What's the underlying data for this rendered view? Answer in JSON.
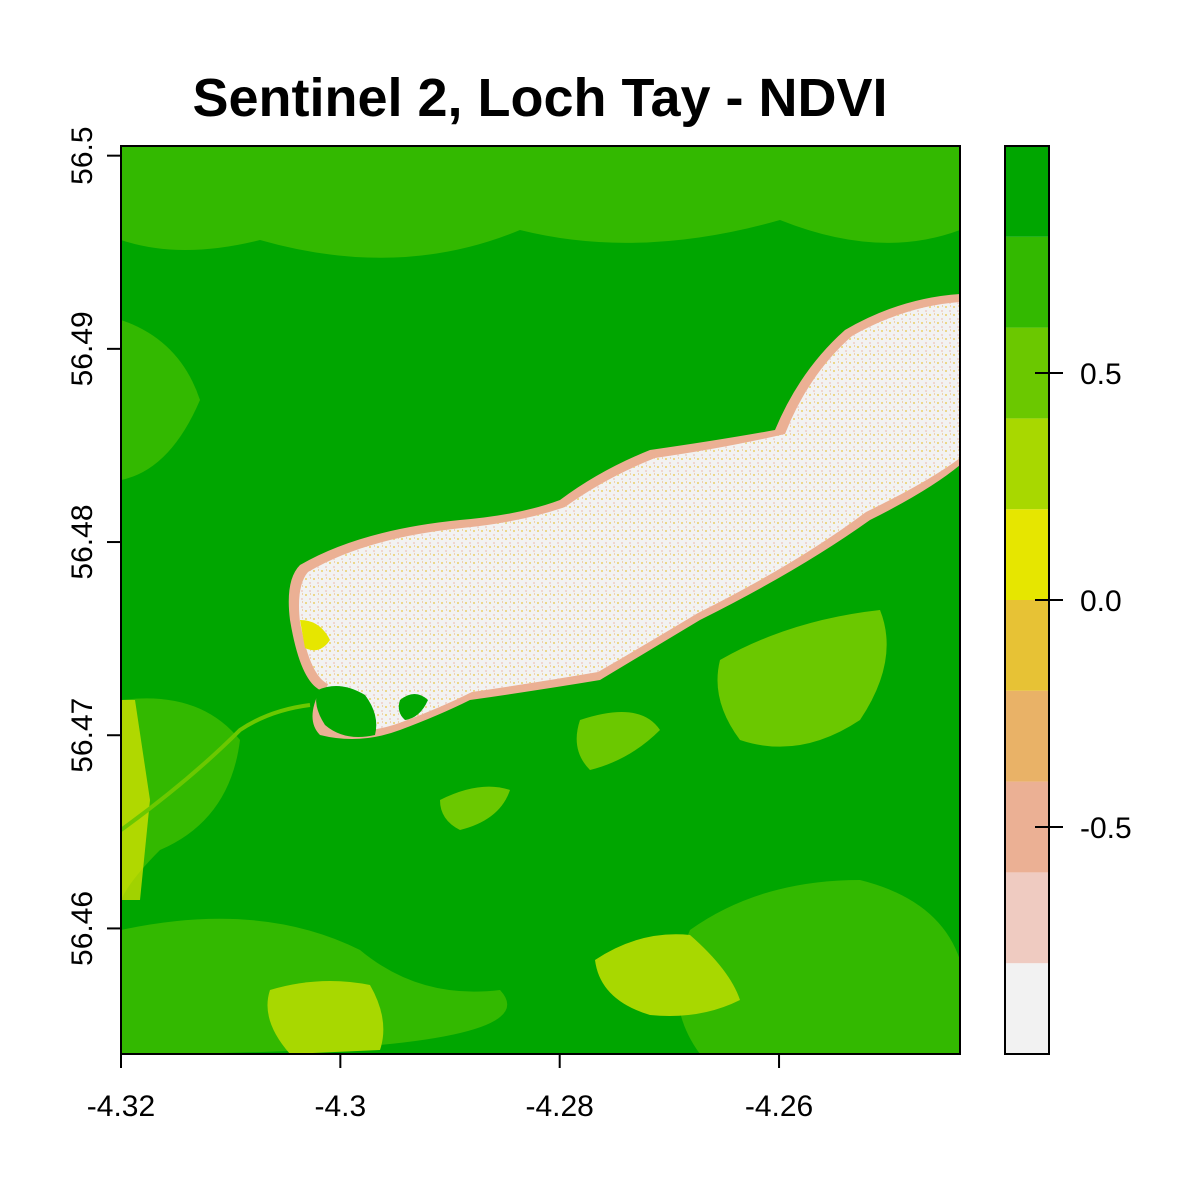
{
  "chart_data": {
    "type": "heatmap",
    "title": "Sentinel 2, Loch Tay - NDVI",
    "xlabel": "",
    "ylabel": "",
    "xlim": [
      -4.32,
      -4.2435
    ],
    "ylim": [
      56.4535,
      56.5005
    ],
    "x_ticks": [
      -4.32,
      -4.3,
      -4.28,
      -4.26
    ],
    "x_tick_labels": [
      "-4.32",
      "-4.3",
      "-4.28",
      "-4.26"
    ],
    "y_ticks": [
      56.46,
      56.47,
      56.48,
      56.49,
      56.5
    ],
    "y_tick_labels": [
      "56.46",
      "56.47",
      "56.48",
      "56.49",
      "56.5"
    ],
    "grid": false,
    "legend": {
      "position": "right",
      "range": [
        -1.0,
        1.0
      ],
      "ticks": [
        -0.5,
        0.0,
        0.5
      ],
      "tick_labels": [
        "-0.5",
        "0.0",
        "0.5"
      ],
      "color_bins": [
        {
          "from": -1.0,
          "to": -0.8,
          "color": "#F2F2F2"
        },
        {
          "from": -0.8,
          "to": -0.6,
          "color": "#EFCBC1"
        },
        {
          "from": -0.6,
          "to": -0.4,
          "color": "#EBB094"
        },
        {
          "from": -0.4,
          "to": -0.2,
          "color": "#E9B267"
        },
        {
          "from": -0.2,
          "to": 0.0,
          "color": "#E7C235"
        },
        {
          "from": 0.0,
          "to": 0.2,
          "color": "#E6E600"
        },
        {
          "from": 0.2,
          "to": 0.4,
          "color": "#A8D800"
        },
        {
          "from": 0.4,
          "to": 0.6,
          "color": "#6BC800"
        },
        {
          "from": 0.6,
          "to": 0.8,
          "color": "#33B900"
        },
        {
          "from": 0.8,
          "to": 1.0,
          "color": "#00A600"
        }
      ]
    },
    "features": [
      {
        "label": "land_vegetation",
        "ndvi": 0.9,
        "color": "#00A600"
      },
      {
        "label": "loch_water",
        "ndvi": -0.9,
        "color": "#F2F2F2"
      },
      {
        "label": "shoreline",
        "ndvi": -0.4,
        "color": "#EBB094"
      },
      {
        "label": "fields",
        "ndvi": 0.5,
        "color": "#6BC800"
      }
    ]
  }
}
